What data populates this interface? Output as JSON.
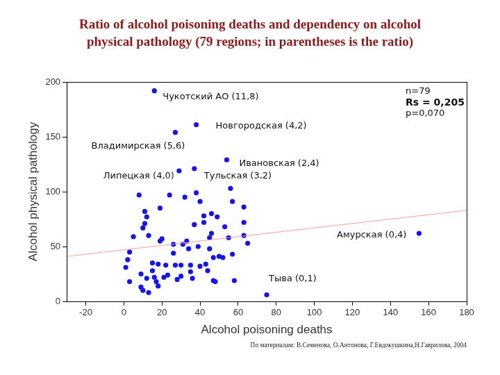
{
  "chart_data": {
    "type": "scatter",
    "title": [
      "Ratio of alcohol poisoning deaths and dependency on alcohol",
      "physical pathology (79 regions; in parentheses is the ratio)"
    ],
    "x_label": "Alcohol poisoning deaths",
    "y_label": "Alcohol physical pathology",
    "xlim": [
      -30,
      180
    ],
    "xticks": [
      -20,
      0,
      20,
      40,
      60,
      80,
      100,
      120,
      140,
      160,
      180
    ],
    "ylim": [
      0,
      200
    ],
    "yticks": [
      0,
      50,
      100,
      150,
      200
    ],
    "grid": false,
    "color": "#1515e6",
    "marker": "circle",
    "x": [
      16,
      38,
      27,
      54,
      29,
      37,
      155,
      75,
      1,
      3,
      2,
      3,
      5,
      8,
      11,
      10,
      11,
      12,
      9,
      9,
      10,
      12,
      13,
      13,
      15,
      15,
      16,
      17,
      18,
      18,
      19,
      20,
      19,
      21,
      22,
      23,
      24,
      26,
      26,
      27,
      28,
      30,
      30,
      31,
      32,
      33,
      34,
      35,
      35,
      36,
      37,
      38,
      39,
      40,
      40,
      42,
      42,
      43,
      44,
      45,
      45,
      46,
      46,
      47,
      47,
      48,
      49,
      50,
      52,
      53,
      55,
      56,
      57,
      57,
      58,
      63,
      63,
      63,
      65
    ],
    "values": [
      192,
      161,
      154,
      129,
      119,
      121,
      62,
      6,
      31,
      45,
      38,
      18,
      59,
      97,
      82,
      67,
      71,
      77,
      25,
      13,
      10,
      21,
      8,
      60,
      28,
      35,
      22,
      18,
      14,
      34,
      55,
      57,
      85,
      22,
      33,
      24,
      97,
      52,
      44,
      33,
      20,
      23,
      33,
      52,
      95,
      55,
      48,
      33,
      27,
      21,
      70,
      99,
      50,
      32,
      91,
      78,
      72,
      34,
      28,
      58,
      48,
      80,
      62,
      40,
      19,
      18,
      77,
      41,
      40,
      68,
      58,
      103,
      91,
      43,
      19,
      86,
      72,
      60,
      53
    ],
    "point_labels": [
      "Чукотский АО (11,8)",
      "Новгородская (4,2)",
      "Владимирская (5,6)",
      "Ивановская (2,4)",
      "Липецкая (4,0)",
      "Тульская (3,2)",
      "Амурская (0,4)",
      "Тыва (0,1)",
      null,
      null,
      null,
      null,
      null,
      null,
      null,
      null,
      null,
      null,
      null,
      null,
      null,
      null,
      null,
      null,
      null,
      null,
      null,
      null,
      null,
      null,
      null,
      null,
      null,
      null,
      null,
      null,
      null,
      null,
      null,
      null,
      null,
      null,
      null,
      null,
      null,
      null,
      null,
      null,
      null,
      null,
      null,
      null,
      null,
      null,
      null,
      null,
      null,
      null,
      null,
      null,
      null,
      null,
      null,
      null,
      null,
      null,
      null,
      null,
      null,
      null,
      null,
      null,
      null,
      null,
      null,
      null,
      null,
      null,
      null
    ],
    "trend_line": {
      "x": [
        -30,
        180
      ],
      "values": [
        41,
        83
      ],
      "color": "#ff9c9c",
      "line_style": "solid"
    },
    "annotations": [
      "n=79",
      "Rs = 0,205",
      "p=0,070"
    ],
    "source": "По материалам: В.Семенова, О.Антонова, Г.Евдокушкина,Н.Гаврилова, 2004"
  }
}
